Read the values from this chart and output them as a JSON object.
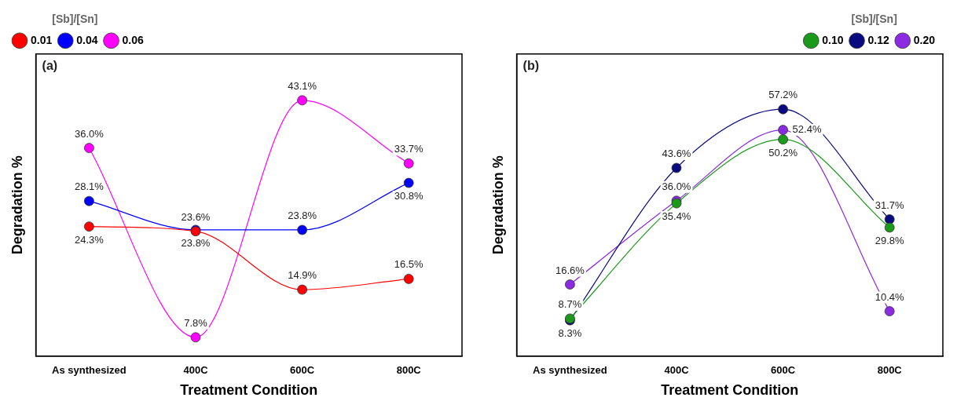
{
  "chart_data": [
    {
      "type": "line",
      "annotations": [
        "(a)"
      ],
      "xlabel": "Treatment Condition",
      "ylabel": "Degradation %",
      "legend_title": "[Sb]/[Sn]",
      "legend": "top left",
      "marker": "circle",
      "tick_labels": "x",
      "categories": [
        "As synthesized",
        "400C",
        "600C",
        "800C"
      ],
      "series": [
        {
          "name": "0.01",
          "color": "#ff0000",
          "values": [
            24.3,
            23.6,
            14.9,
            16.5
          ],
          "value_labels": [
            "24.3%",
            "23.6%",
            "14.9%",
            "16.5%"
          ]
        },
        {
          "name": "0.04",
          "color": "#0000ff",
          "values": [
            28.1,
            23.8,
            23.8,
            30.8
          ],
          "value_labels": [
            "28.1%",
            "23.8%",
            "23.8%",
            "30.8%"
          ]
        },
        {
          "name": "0.06",
          "color": "#ff00ff",
          "values": [
            36.0,
            7.8,
            43.1,
            33.7
          ],
          "value_labels": [
            "36.0%",
            "7.8%",
            "43.1%",
            "33.7%"
          ]
        }
      ]
    },
    {
      "type": "line",
      "annotations": [
        "(b)"
      ],
      "xlabel": "Treatment Condition",
      "ylabel": "Degradation %",
      "legend_title": "[Sb]/[Sn]",
      "legend": "top right",
      "marker": "circle",
      "tick_labels": "x",
      "categories": [
        "As synthesized",
        "400C",
        "600C",
        "800C"
      ],
      "series": [
        {
          "name": "0.10",
          "color": "#1a9a1a",
          "values": [
            8.7,
            35.4,
            50.2,
            29.8
          ],
          "value_labels": [
            "8.7%",
            "35.4%",
            "50.2%",
            "29.8%"
          ]
        },
        {
          "name": "0.12",
          "color": "#0a0a80",
          "values": [
            8.3,
            43.6,
            57.2,
            31.7
          ],
          "value_labels": [
            "8.3%",
            "43.6%",
            "57.2%",
            "31.7%"
          ]
        },
        {
          "name": "0.20",
          "color": "#8a2be2",
          "values": [
            16.6,
            36.0,
            52.4,
            10.4
          ],
          "value_labels": [
            "16.6%",
            "36.0%",
            "52.4%",
            "10.4%"
          ]
        }
      ]
    }
  ]
}
